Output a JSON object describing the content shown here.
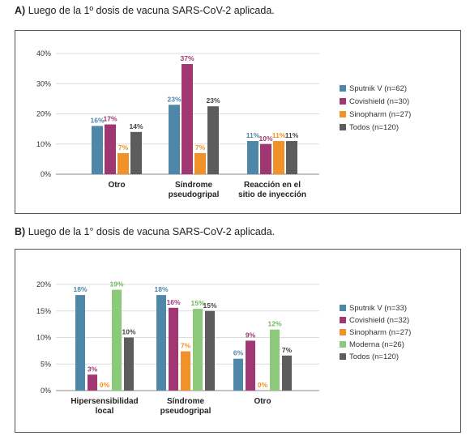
{
  "panels": [
    {
      "letter": "A)",
      "heading": "Luego de la 1º dosis de vacuna SARS-CoV-2 aplicada.",
      "chart_data": {
        "type": "bar",
        "categories": [
          [
            "Otro"
          ],
          [
            "Síndrome",
            "pseudogripal"
          ],
          [
            "Reacción en el",
            "sitio de inyección"
          ]
        ],
        "ylim": [
          0,
          40
        ],
        "yticks": [
          0,
          10,
          20,
          30,
          40
        ],
        "ytick_labels": [
          "0%",
          "10%",
          "20%",
          "30%",
          "40%"
        ],
        "grid": true,
        "legend_position": "right",
        "series": [
          {
            "name": "Sputnik V (n=62)",
            "color": "#4f87a8",
            "label_color": "#4f87a8",
            "values": [
              16,
              23,
              11
            ],
            "labels": [
              "16%",
              "23%",
              "11%"
            ]
          },
          {
            "name": "Covishield (n=30)",
            "color": "#a03672",
            "label_color": "#a03672",
            "values": [
              16.5,
              36.5,
              10
            ],
            "labels": [
              "17%",
              "37%",
              "10%"
            ]
          },
          {
            "name": "Sinopharm (n=27)",
            "color": "#f0912a",
            "label_color": "#f0912a",
            "values": [
              7,
              7,
              11
            ],
            "labels": [
              "7%",
              "7%",
              "11%"
            ]
          },
          {
            "name": "Todos (n=120)",
            "color": "#5c5c5c",
            "label_color": "#444444",
            "values": [
              14,
              22.5,
              11
            ],
            "labels": [
              "14%",
              "23%",
              "11%"
            ]
          }
        ]
      }
    },
    {
      "letter": "B)",
      "heading": "Luego de la 1° dosis de vacuna SARS-CoV-2 aplicada.",
      "chart_data": {
        "type": "bar",
        "categories": [
          [
            "Hipersensibilidad",
            "local"
          ],
          [
            "Síndrome",
            "pseudogripal"
          ],
          [
            "Otro"
          ]
        ],
        "ylim": [
          0,
          20
        ],
        "yticks": [
          0,
          5,
          10,
          15,
          20
        ],
        "ytick_labels": [
          "0%",
          "5%",
          "10%",
          "15%",
          "20%"
        ],
        "grid": true,
        "legend_position": "right",
        "series": [
          {
            "name": "Sputnik V (n=33)",
            "color": "#4f87a8",
            "label_color": "#4f87a8",
            "values": [
              18,
              18,
              6
            ],
            "labels": [
              "18%",
              "18%",
              "6%"
            ]
          },
          {
            "name": "Covishield (n=32)",
            "color": "#a03672",
            "label_color": "#a03672",
            "values": [
              3,
              15.6,
              9.4
            ],
            "labels": [
              "3%",
              "16%",
              "9%"
            ]
          },
          {
            "name": "Sinopharm (n=27)",
            "color": "#f0912a",
            "label_color": "#f0912a",
            "values": [
              0,
              7.4,
              0
            ],
            "labels": [
              "0%",
              "7%",
              "0%"
            ]
          },
          {
            "name": "Moderna (n=26)",
            "color": "#8cc97a",
            "label_color": "#6cb85a",
            "values": [
              19,
              15.4,
              11.5
            ],
            "labels": [
              "19%",
              "15%",
              "12%"
            ]
          },
          {
            "name": "Todos (n=120)",
            "color": "#5c5c5c",
            "label_color": "#444444",
            "values": [
              10,
              15,
              6.6
            ],
            "labels": [
              "10%",
              "15%",
              "7%"
            ]
          }
        ]
      }
    }
  ]
}
